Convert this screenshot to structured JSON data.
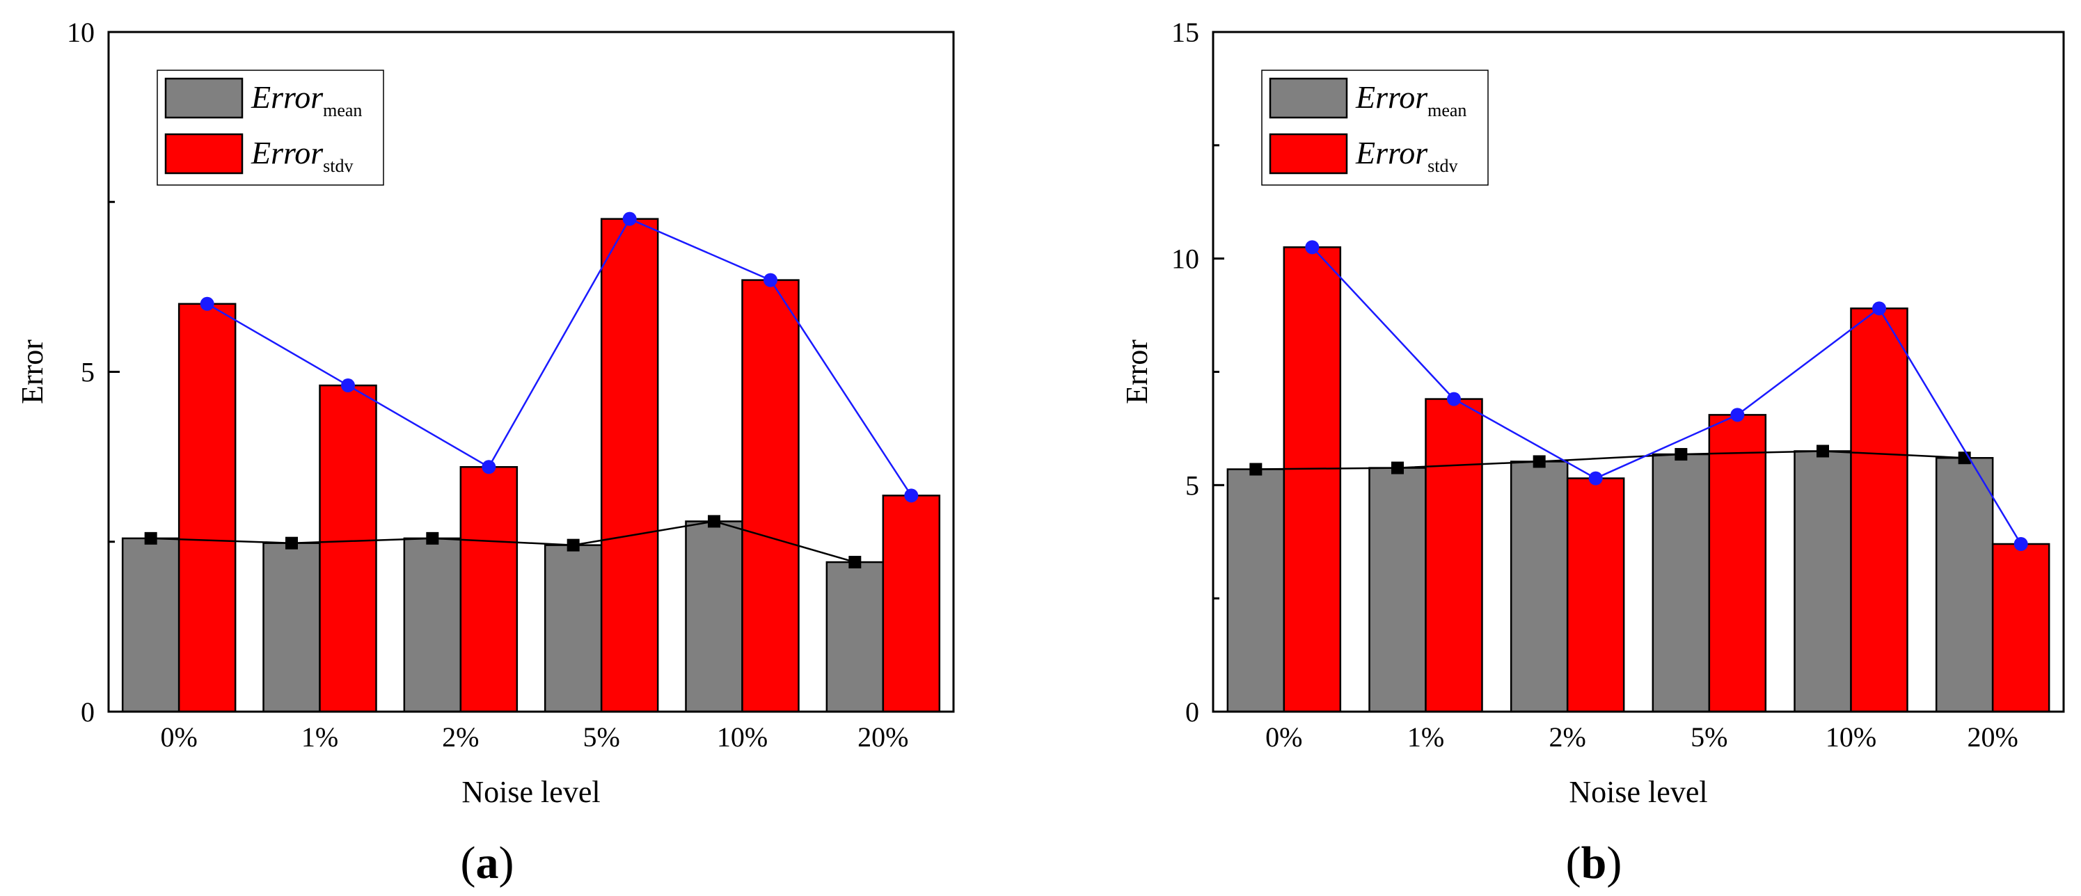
{
  "figure": {
    "colors": {
      "mean_bar": "#808080",
      "stdv_bar": "#ff0000",
      "mean_line": "#000000",
      "stdv_line": "#1a1aff",
      "mean_marker": "#000000",
      "stdv_marker": "#1a1aff"
    }
  },
  "chart_data": [
    {
      "id": "a",
      "type": "bar",
      "panel_label": "a",
      "title": "",
      "xlabel": "Noise level",
      "ylabel": "Error",
      "ylim": [
        0,
        10
      ],
      "yticks": [
        "0",
        "5",
        "10"
      ],
      "categories": [
        "0%",
        "1%",
        "2%",
        "5%",
        "10%",
        "20%"
      ],
      "legend": {
        "placement": "top-left",
        "entries": [
          {
            "base": "Error",
            "sub": "mean"
          },
          {
            "base": "Error",
            "sub": "stdv"
          }
        ]
      },
      "series": [
        {
          "name": "Error mean",
          "values": [
            2.55,
            2.48,
            2.55,
            2.45,
            2.8,
            2.2
          ]
        },
        {
          "name": "Error stdv",
          "values": [
            6.0,
            4.8,
            3.6,
            7.25,
            6.35,
            3.18
          ]
        }
      ]
    },
    {
      "id": "b",
      "type": "bar",
      "panel_label": "b",
      "title": "",
      "xlabel": "Noise level",
      "ylabel": "Error",
      "ylim": [
        0,
        15
      ],
      "yticks": [
        "0",
        "5",
        "10",
        "15"
      ],
      "categories": [
        "0%",
        "1%",
        "2%",
        "5%",
        "10%",
        "20%"
      ],
      "legend": {
        "placement": "top-left",
        "entries": [
          {
            "base": "Error",
            "sub": "mean"
          },
          {
            "base": "Error",
            "sub": "stdv"
          }
        ]
      },
      "series": [
        {
          "name": "Error mean",
          "values": [
            5.35,
            5.38,
            5.52,
            5.68,
            5.75,
            5.6
          ]
        },
        {
          "name": "Error stdv",
          "values": [
            10.25,
            6.9,
            5.15,
            6.55,
            8.9,
            3.7
          ]
        }
      ]
    }
  ]
}
